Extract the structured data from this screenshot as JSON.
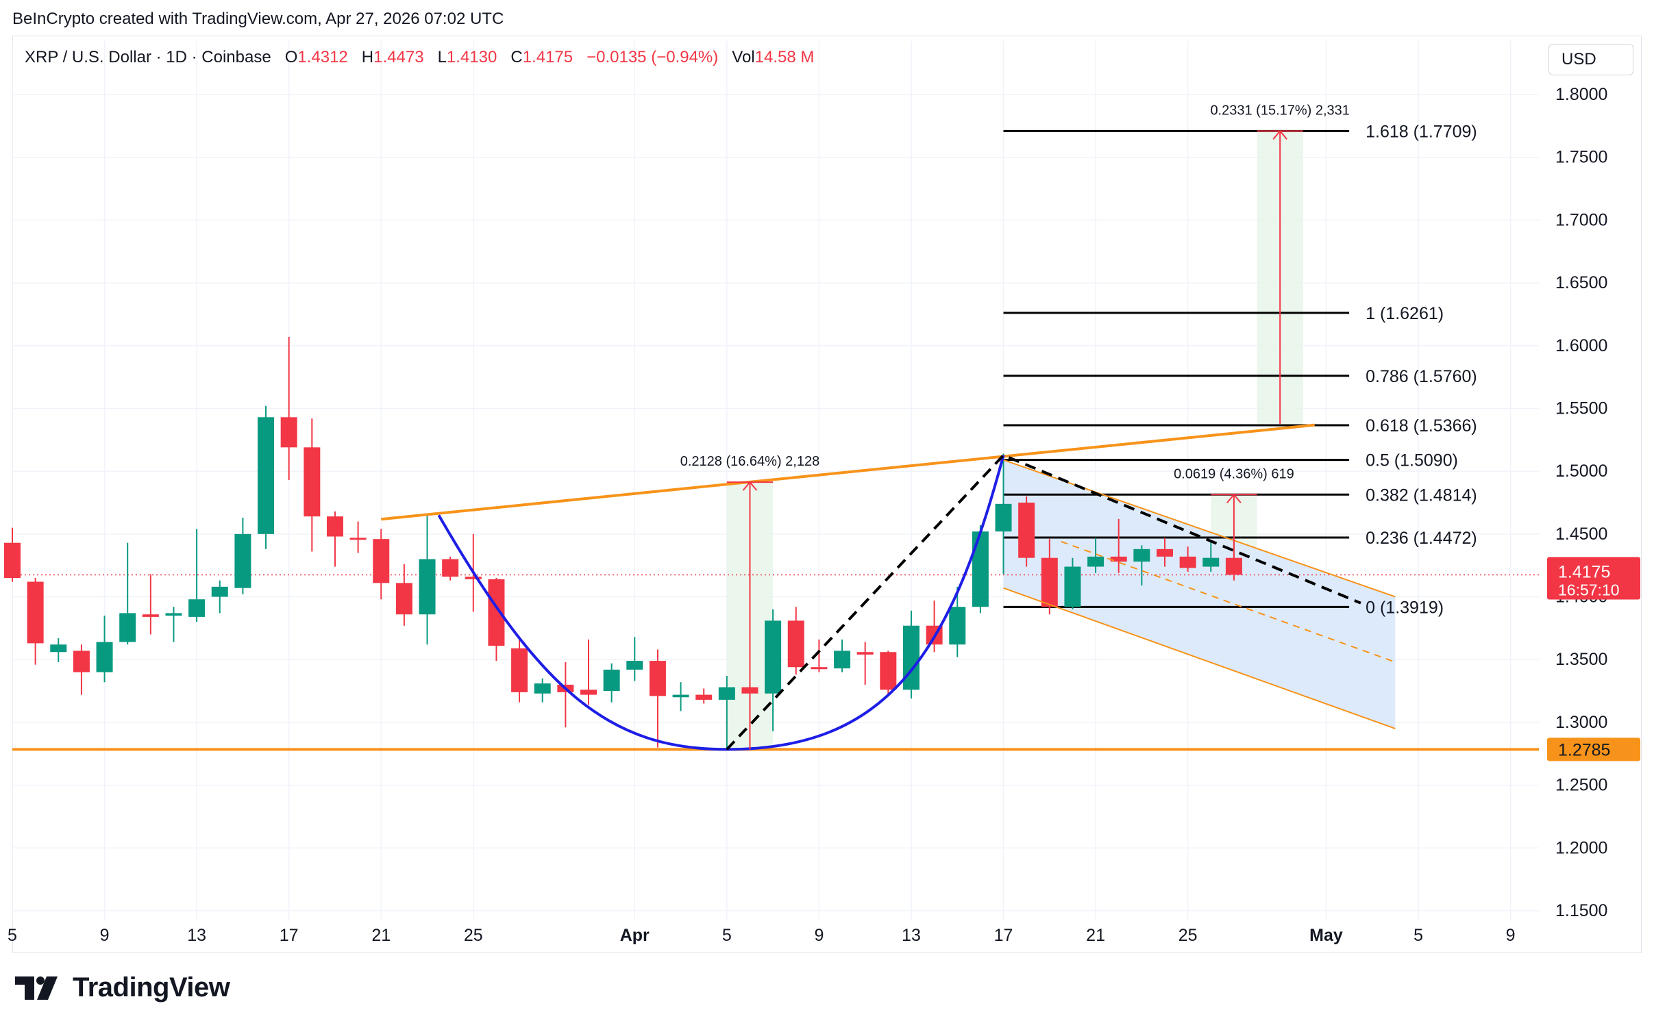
{
  "header": {
    "attribution": "BeInCrypto created with TradingView.com, Apr 27, 2026 07:02 UTC"
  },
  "legend": {
    "symbol": "XRP / U.S. Dollar · 1D · Coinbase",
    "open_label": "O",
    "open": "1.4312",
    "high_label": "H",
    "high": "1.4473",
    "low_label": "L",
    "low": "1.4130",
    "close_label": "C",
    "close": "1.4175",
    "change": "−0.0135 (−0.94%)",
    "vol_label": "Vol",
    "vol": "14.58 M"
  },
  "currency": "USD",
  "brand": {
    "name": "TradingView",
    "logo_icon": "tradingview-logo-icon"
  },
  "colors": {
    "up": "#089981",
    "down": "#f23645",
    "accent_orange": "#f7931a",
    "cup_blue": "#1e1ee6",
    "channel_fill": "#dbe9fb",
    "target_fill": "#e8f5e9"
  },
  "chart_data": {
    "type": "candlestick",
    "symbol": "XRP / U.S. Dollar",
    "timeframe": "1D",
    "exchange": "Coinbase",
    "ylim": [
      1.13,
      1.82
    ],
    "y_ticks": [
      "1.8000",
      "1.7500",
      "1.7000",
      "1.6500",
      "1.6000",
      "1.5500",
      "1.5000",
      "1.4500",
      "1.4000",
      "1.3500",
      "1.3000",
      "1.2500",
      "1.2000",
      "1.1500"
    ],
    "x_ticks": [
      {
        "label": "5",
        "day": 0,
        "bold": false
      },
      {
        "label": "9",
        "day": 4,
        "bold": false
      },
      {
        "label": "13",
        "day": 8,
        "bold": false
      },
      {
        "label": "17",
        "day": 12,
        "bold": false
      },
      {
        "label": "21",
        "day": 16,
        "bold": false
      },
      {
        "label": "25",
        "day": 20,
        "bold": false
      },
      {
        "label": "Apr",
        "day": 27,
        "bold": true
      },
      {
        "label": "5",
        "day": 31,
        "bold": false
      },
      {
        "label": "9",
        "day": 35,
        "bold": false
      },
      {
        "label": "13",
        "day": 39,
        "bold": false
      },
      {
        "label": "17",
        "day": 43,
        "bold": false
      },
      {
        "label": "21",
        "day": 47,
        "bold": false
      },
      {
        "label": "25",
        "day": 51,
        "bold": false
      },
      {
        "label": "May",
        "day": 57,
        "bold": true
      },
      {
        "label": "5",
        "day": 61,
        "bold": false
      },
      {
        "label": "9",
        "day": 65,
        "bold": false
      }
    ],
    "candles": [
      {
        "day": 0,
        "o": 1.443,
        "h": 1.455,
        "l": 1.412,
        "c": 1.415
      },
      {
        "day": 1,
        "o": 1.412,
        "h": 1.415,
        "l": 1.346,
        "c": 1.363
      },
      {
        "day": 2,
        "o": 1.356,
        "h": 1.367,
        "l": 1.348,
        "c": 1.362
      },
      {
        "day": 3,
        "o": 1.357,
        "h": 1.362,
        "l": 1.322,
        "c": 1.34
      },
      {
        "day": 4,
        "o": 1.34,
        "h": 1.385,
        "l": 1.332,
        "c": 1.364
      },
      {
        "day": 5,
        "o": 1.364,
        "h": 1.443,
        "l": 1.362,
        "c": 1.387
      },
      {
        "day": 6,
        "o": 1.386,
        "h": 1.418,
        "l": 1.37,
        "c": 1.384
      },
      {
        "day": 7,
        "o": 1.385,
        "h": 1.392,
        "l": 1.364,
        "c": 1.387
      },
      {
        "day": 8,
        "o": 1.384,
        "h": 1.454,
        "l": 1.38,
        "c": 1.398
      },
      {
        "day": 9,
        "o": 1.4,
        "h": 1.413,
        "l": 1.387,
        "c": 1.408
      },
      {
        "day": 10,
        "o": 1.407,
        "h": 1.463,
        "l": 1.402,
        "c": 1.45
      },
      {
        "day": 11,
        "o": 1.45,
        "h": 1.552,
        "l": 1.438,
        "c": 1.543
      },
      {
        "day": 12,
        "o": 1.543,
        "h": 1.607,
        "l": 1.493,
        "c": 1.519
      },
      {
        "day": 13,
        "o": 1.519,
        "h": 1.542,
        "l": 1.436,
        "c": 1.464
      },
      {
        "day": 14,
        "o": 1.464,
        "h": 1.468,
        "l": 1.424,
        "c": 1.448
      },
      {
        "day": 15,
        "o": 1.447,
        "h": 1.46,
        "l": 1.435,
        "c": 1.446
      },
      {
        "day": 16,
        "o": 1.446,
        "h": 1.454,
        "l": 1.398,
        "c": 1.411
      },
      {
        "day": 17,
        "o": 1.411,
        "h": 1.426,
        "l": 1.377,
        "c": 1.386
      },
      {
        "day": 18,
        "o": 1.386,
        "h": 1.465,
        "l": 1.362,
        "c": 1.43
      },
      {
        "day": 19,
        "o": 1.43,
        "h": 1.432,
        "l": 1.413,
        "c": 1.416
      },
      {
        "day": 20,
        "o": 1.416,
        "h": 1.45,
        "l": 1.388,
        "c": 1.414
      },
      {
        "day": 21,
        "o": 1.414,
        "h": 1.415,
        "l": 1.349,
        "c": 1.361
      },
      {
        "day": 22,
        "o": 1.359,
        "h": 1.367,
        "l": 1.316,
        "c": 1.324
      },
      {
        "day": 23,
        "o": 1.323,
        "h": 1.335,
        "l": 1.316,
        "c": 1.331
      },
      {
        "day": 24,
        "o": 1.33,
        "h": 1.348,
        "l": 1.296,
        "c": 1.324
      },
      {
        "day": 25,
        "o": 1.326,
        "h": 1.366,
        "l": 1.314,
        "c": 1.322
      },
      {
        "day": 26,
        "o": 1.325,
        "h": 1.347,
        "l": 1.316,
        "c": 1.342
      },
      {
        "day": 27,
        "o": 1.342,
        "h": 1.368,
        "l": 1.333,
        "c": 1.349
      },
      {
        "day": 28,
        "o": 1.349,
        "h": 1.358,
        "l": 1.28,
        "c": 1.321
      },
      {
        "day": 29,
        "o": 1.32,
        "h": 1.332,
        "l": 1.309,
        "c": 1.322
      },
      {
        "day": 30,
        "o": 1.322,
        "h": 1.327,
        "l": 1.315,
        "c": 1.318
      },
      {
        "day": 31,
        "o": 1.318,
        "h": 1.337,
        "l": 1.279,
        "c": 1.328
      },
      {
        "day": 32,
        "o": 1.328,
        "h": 1.332,
        "l": 1.281,
        "c": 1.323
      },
      {
        "day": 33,
        "o": 1.323,
        "h": 1.39,
        "l": 1.293,
        "c": 1.381
      },
      {
        "day": 34,
        "o": 1.381,
        "h": 1.392,
        "l": 1.338,
        "c": 1.344
      },
      {
        "day": 35,
        "o": 1.344,
        "h": 1.366,
        "l": 1.34,
        "c": 1.343
      },
      {
        "day": 36,
        "o": 1.343,
        "h": 1.366,
        "l": 1.34,
        "c": 1.357
      },
      {
        "day": 37,
        "o": 1.356,
        "h": 1.364,
        "l": 1.33,
        "c": 1.354
      },
      {
        "day": 38,
        "o": 1.356,
        "h": 1.357,
        "l": 1.321,
        "c": 1.326
      },
      {
        "day": 39,
        "o": 1.326,
        "h": 1.389,
        "l": 1.319,
        "c": 1.377
      },
      {
        "day": 40,
        "o": 1.377,
        "h": 1.397,
        "l": 1.356,
        "c": 1.362
      },
      {
        "day": 41,
        "o": 1.362,
        "h": 1.408,
        "l": 1.352,
        "c": 1.392
      },
      {
        "day": 42,
        "o": 1.392,
        "h": 1.457,
        "l": 1.387,
        "c": 1.452
      },
      {
        "day": 43,
        "o": 1.452,
        "h": 1.514,
        "l": 1.418,
        "c": 1.474
      },
      {
        "day": 44,
        "o": 1.475,
        "h": 1.48,
        "l": 1.424,
        "c": 1.431
      },
      {
        "day": 45,
        "o": 1.431,
        "h": 1.446,
        "l": 1.386,
        "c": 1.392
      },
      {
        "day": 46,
        "o": 1.392,
        "h": 1.431,
        "l": 1.39,
        "c": 1.424
      },
      {
        "day": 47,
        "o": 1.424,
        "h": 1.447,
        "l": 1.419,
        "c": 1.432
      },
      {
        "day": 48,
        "o": 1.432,
        "h": 1.462,
        "l": 1.419,
        "c": 1.428
      },
      {
        "day": 49,
        "o": 1.428,
        "h": 1.441,
        "l": 1.409,
        "c": 1.438
      },
      {
        "day": 50,
        "o": 1.438,
        "h": 1.447,
        "l": 1.424,
        "c": 1.432
      },
      {
        "day": 51,
        "o": 1.432,
        "h": 1.44,
        "l": 1.42,
        "c": 1.423
      },
      {
        "day": 52,
        "o": 1.424,
        "h": 1.444,
        "l": 1.42,
        "c": 1.431
      },
      {
        "day": 53,
        "o": 1.431,
        "h": 1.447,
        "l": 1.413,
        "c": 1.4175
      }
    ],
    "fib_levels": [
      {
        "ratio": "1.618",
        "price": 1.7709,
        "label": "1.618 (1.7709)"
      },
      {
        "ratio": "1",
        "price": 1.6261,
        "label": "1 (1.6261)"
      },
      {
        "ratio": "0.786",
        "price": 1.576,
        "label": "0.786 (1.5760)"
      },
      {
        "ratio": "0.618",
        "price": 1.5366,
        "label": "0.618 (1.5366)"
      },
      {
        "ratio": "0.5",
        "price": 1.509,
        "label": "0.5 (1.5090)"
      },
      {
        "ratio": "0.382",
        "price": 1.4814,
        "label": "0.382 (1.4814)"
      },
      {
        "ratio": "0.236",
        "price": 1.4472,
        "label": "0.236 (1.4472)"
      },
      {
        "ratio": "0",
        "price": 1.3919,
        "label": "0 (1.3919)"
      }
    ],
    "fib_day_range": [
      43,
      58
    ],
    "support_level": {
      "price": 1.2785,
      "label": "1.2785"
    },
    "neckline": {
      "from": {
        "day": 16,
        "price": 1.4618
      },
      "to": {
        "day": 56.5,
        "price": 1.5368
      }
    },
    "last_price": {
      "price": 1.4175,
      "label": "1.4175",
      "countdown": "16:57:10"
    },
    "measurements": [
      {
        "day_from": 31,
        "day_to": 33,
        "from": 1.2785,
        "to": 1.4913,
        "label": "0.2128 (16.64%) 2,128"
      },
      {
        "day_from": 54,
        "day_to": 56,
        "from": 1.5378,
        "to": 1.7709,
        "label": "0.2331 (15.17%) 2,331"
      },
      {
        "day_from": 52,
        "day_to": 54,
        "from": 1.4195,
        "to": 1.4814,
        "label": "0.0619 (4.36%) 619"
      }
    ],
    "channel": {
      "upper": {
        "from": {
          "day": 43,
          "price": 1.509
        },
        "to": {
          "day": 60,
          "price": 1.4
        }
      },
      "lower": {
        "from": {
          "day": 43,
          "price": 1.407
        },
        "to": {
          "day": 60,
          "price": 1.295
        }
      },
      "mid": {
        "from": {
          "day": 45.5,
          "price": 1.444
        },
        "to": {
          "day": 60,
          "price": 1.348
        }
      }
    },
    "cup_curve": {
      "start": {
        "day": 18.5,
        "price": 1.465
      },
      "bottom": {
        "day": 31,
        "price": 1.2785
      },
      "end": {
        "day": 43,
        "price": 1.5127
      }
    },
    "zigzag_path": [
      {
        "day": 31,
        "price": 1.2785
      },
      {
        "day": 43,
        "price": 1.5127
      },
      {
        "day": 58.5,
        "price": 1.395
      }
    ]
  }
}
